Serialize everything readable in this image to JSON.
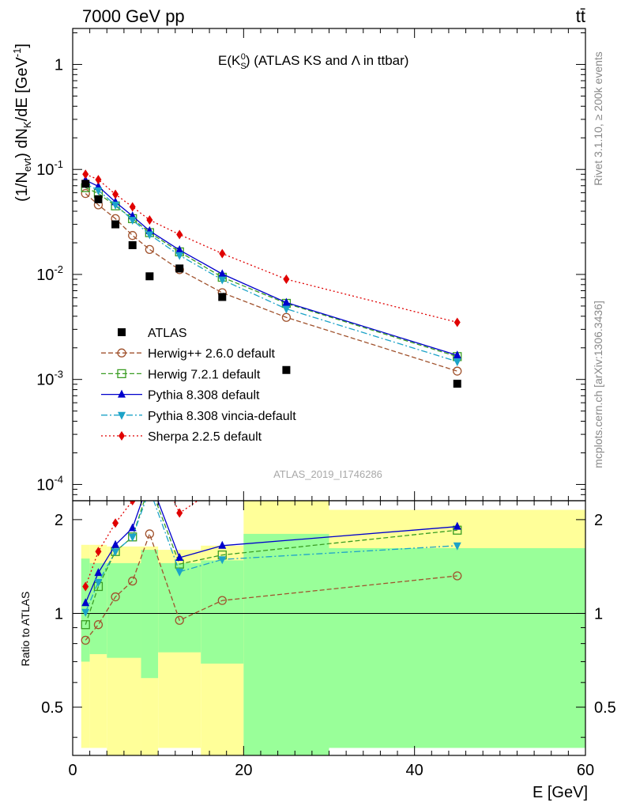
{
  "header": {
    "left": "7000 GeV pp",
    "right": "tt̄"
  },
  "side_texts": {
    "top": "Rivet 3.1.10, ≥ 200k events",
    "bottom": "mcplots.cern.ch [arXiv:1306.3436]"
  },
  "chart_data": {
    "type": "line",
    "title_parts": {
      "main": "E(K",
      "sup": "0",
      "sub": "S",
      "close": ")",
      "rest": " (ATLAS KS and Λ in ttbar)"
    },
    "watermark": "ATLAS_2019_I1746286",
    "ylabel_main": {
      "p1": "(1/N",
      "sub1": "evt",
      "p2": ") dN",
      "sub2": "K",
      "p3": "/dE [GeV",
      "sup": "-1",
      "p4": "]"
    },
    "ylabel_ratio": "Ratio to ATLAS",
    "xlabel": "E [GeV]",
    "xlim": [
      0,
      60
    ],
    "ylim_main": [
      7e-05,
      2.2
    ],
    "ylim_ratio": [
      0.35,
      2.3
    ],
    "y_log": true,
    "x_ticks": [
      "0",
      "20",
      "40",
      "60"
    ],
    "y_ticks_main": [
      {
        "v": 1,
        "b": "1",
        "e": ""
      },
      {
        "v": 0.1,
        "b": "10",
        "e": "-1"
      },
      {
        "v": 0.01,
        "b": "10",
        "e": "-2"
      },
      {
        "v": 0.001,
        "b": "10",
        "e": "-3"
      },
      {
        "v": 0.0001,
        "b": "10",
        "e": "-4"
      }
    ],
    "y_ticks_ratio": [
      "0.5",
      "1",
      "2"
    ],
    "bins": [
      {
        "lo": 1,
        "hi": 2,
        "yellow": [
          0.37,
          1.66
        ],
        "green": [
          0.7,
          1.5
        ]
      },
      {
        "lo": 2,
        "hi": 4,
        "yellow": [
          0.37,
          1.66
        ],
        "green": [
          0.74,
          1.45
        ]
      },
      {
        "lo": 4,
        "hi": 8,
        "yellow": [
          0.35,
          1.64
        ],
        "green": [
          0.72,
          1.45
        ]
      },
      {
        "lo": 8,
        "hi": 10,
        "yellow": [
          0.35,
          1.64
        ],
        "green": [
          0.62,
          1.6
        ]
      },
      {
        "lo": 10,
        "hi": 15,
        "yellow": [
          0.37,
          1.6
        ],
        "green": [
          0.75,
          1.45
        ]
      },
      {
        "lo": 15,
        "hi": 20,
        "yellow": [
          0.35,
          1.65
        ],
        "green": [
          0.69,
          1.48
        ]
      },
      {
        "lo": 20,
        "hi": 30,
        "yellow": [
          0.35,
          2.3
        ],
        "green": [
          0.35,
          1.8
        ]
      },
      {
        "lo": 30,
        "hi": 60,
        "yellow": [
          0.37,
          2.15
        ],
        "green": [
          0.37,
          1.62
        ]
      }
    ],
    "data": {
      "name": "ATLAS",
      "x": [
        1.5,
        3,
        5,
        7,
        9,
        12.5,
        17.5,
        25,
        45
      ],
      "y": [
        0.073,
        0.052,
        0.03,
        0.019,
        0.0096,
        0.0114,
        0.0061,
        0.00123,
        0.00091
      ]
    },
    "series": [
      {
        "name": "Herwig++ 2.6.0 default",
        "color": "#a0522d",
        "dash": "6,3",
        "marker": "circle",
        "x": [
          1.5,
          3,
          5,
          7,
          9,
          12.5,
          17.5,
          25,
          45
        ],
        "y": [
          0.059,
          0.046,
          0.034,
          0.0235,
          0.0173,
          0.0111,
          0.0067,
          0.0039,
          0.0012
        ],
        "ratio": [
          0.82,
          0.92,
          1.13,
          1.27,
          1.8,
          0.95,
          1.1,
          null,
          1.32
        ]
      },
      {
        "name": "Herwig 7.2.1 default",
        "color": "#3a9d23",
        "dash": "6,3",
        "marker": "square",
        "x": [
          1.5,
          3,
          5,
          7,
          9,
          12.5,
          17.5,
          25,
          45
        ],
        "y": [
          0.067,
          0.059,
          0.045,
          0.034,
          0.025,
          0.0164,
          0.0094,
          0.0053,
          0.00165
        ],
        "ratio": [
          0.92,
          1.22,
          1.58,
          1.76,
          2.6,
          1.44,
          1.54,
          null,
          1.85
        ]
      },
      {
        "name": "Pythia 8.308 default",
        "color": "#0000cc",
        "dash": "",
        "marker": "triangle-up",
        "x": [
          1.5,
          3,
          5,
          7,
          9,
          12.5,
          17.5,
          25,
          45
        ],
        "y": [
          0.079,
          0.069,
          0.049,
          0.036,
          0.026,
          0.0171,
          0.0101,
          0.0054,
          0.0017
        ],
        "ratio": [
          1.08,
          1.35,
          1.66,
          1.88,
          2.7,
          1.51,
          1.65,
          null,
          1.9
        ]
      },
      {
        "name": "Pythia 8.308 vincia-default",
        "color": "#1ca3c8",
        "dash": "8,3,2,3",
        "marker": "triangle-down",
        "x": [
          1.5,
          3,
          5,
          7,
          9,
          12.5,
          17.5,
          25,
          45
        ],
        "y": [
          0.073,
          0.063,
          0.046,
          0.033,
          0.024,
          0.0152,
          0.0089,
          0.0047,
          0.00148
        ],
        "ratio": [
          1.01,
          1.26,
          1.58,
          1.76,
          2.5,
          1.36,
          1.49,
          null,
          1.65
        ]
      },
      {
        "name": "Sherpa 2.2.5 default",
        "color": "#e00000",
        "dash": "2,3",
        "marker": "diamond",
        "x": [
          1.5,
          3,
          5,
          7,
          9,
          12.5,
          17.5,
          25,
          45
        ],
        "y": [
          0.09,
          0.08,
          0.058,
          0.044,
          0.033,
          0.024,
          0.0158,
          0.009,
          0.0035
        ],
        "ratio": [
          1.22,
          1.58,
          1.95,
          2.3,
          3.4,
          2.1,
          2.6,
          null,
          3.8
        ]
      }
    ]
  }
}
